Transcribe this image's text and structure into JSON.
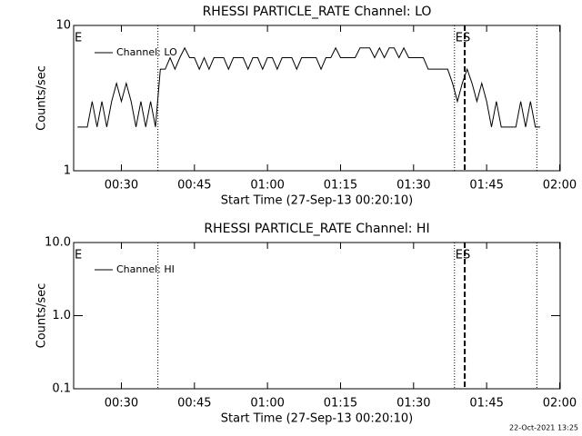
{
  "chart_data": [
    {
      "type": "line",
      "title": "RHESSI PARTICLE_RATE Channel: LO",
      "x_label": "Start Time (27-Sep-13 00:20:10)",
      "y_label": "Counts/sec",
      "log_y": true,
      "legend": "upper left",
      "xlim": [
        20.2,
        120.1
      ],
      "ylim": [
        1,
        10
      ],
      "xticks": [
        {
          "value": 30,
          "label": "00:30"
        },
        {
          "value": 45,
          "label": "00:45"
        },
        {
          "value": 60,
          "label": "01:00"
        },
        {
          "value": 75,
          "label": "01:15"
        },
        {
          "value": 90,
          "label": "01:30"
        },
        {
          "value": 105,
          "label": "01:45"
        },
        {
          "value": 120,
          "label": "02:00"
        }
      ],
      "yticks": [
        1,
        10
      ],
      "vlines": [
        {
          "x": 37.5,
          "style": "dotted"
        },
        {
          "x": 98.4,
          "style": "dotted"
        },
        {
          "x": 100.5,
          "style": "dashed"
        },
        {
          "x": 115.3,
          "style": "dotted"
        }
      ],
      "annotations": [
        {
          "text": "E",
          "x": 20.2
        },
        {
          "text": "ES",
          "x": 98.4
        }
      ],
      "series": [
        {
          "name": "Channel: LO",
          "color": "#000000",
          "x": [
            21,
            22,
            23,
            24,
            25,
            26,
            27,
            28,
            29,
            30,
            31,
            32,
            33,
            34,
            35,
            36,
            37,
            38,
            39,
            40,
            41,
            42,
            43,
            44,
            45,
            46,
            47,
            48,
            49,
            50,
            51,
            52,
            53,
            54,
            55,
            56,
            57,
            58,
            59,
            60,
            61,
            62,
            63,
            64,
            65,
            66,
            67,
            68,
            69,
            70,
            71,
            72,
            73,
            74,
            75,
            76,
            77,
            78,
            79,
            80,
            81,
            82,
            83,
            84,
            85,
            86,
            87,
            88,
            89,
            90,
            91,
            92,
            93,
            94,
            95,
            96,
            97,
            98,
            99,
            100,
            101,
            102,
            103,
            104,
            105,
            106,
            107,
            108,
            109,
            110,
            111,
            112,
            113,
            114,
            115,
            116
          ],
          "values": [
            2,
            2,
            2,
            3,
            2,
            3,
            2,
            3,
            4,
            3,
            4,
            3,
            2,
            3,
            2,
            3,
            2,
            5,
            5,
            6,
            5,
            6,
            7,
            6,
            6,
            5,
            6,
            5,
            6,
            6,
            6,
            5,
            6,
            6,
            6,
            5,
            6,
            6,
            5,
            6,
            6,
            5,
            6,
            6,
            6,
            5,
            6,
            6,
            6,
            6,
            5,
            6,
            6,
            7,
            6,
            6,
            6,
            6,
            7,
            7,
            7,
            6,
            7,
            6,
            7,
            7,
            6,
            7,
            6,
            6,
            6,
            6,
            5,
            5,
            5,
            5,
            5,
            4,
            3,
            4,
            5,
            4,
            3,
            4,
            3,
            2,
            3,
            2,
            2,
            2,
            2,
            3,
            2,
            3,
            2,
            2
          ]
        }
      ]
    },
    {
      "type": "line",
      "title": "RHESSI PARTICLE_RATE Channel: HI",
      "x_label": "Start Time (27-Sep-13 00:20:10)",
      "y_label": "Counts/sec",
      "log_y": true,
      "legend": "upper left",
      "xlim": [
        20.2,
        120.1
      ],
      "ylim": [
        0.1,
        10
      ],
      "xticks": [
        {
          "value": 30,
          "label": "00:30"
        },
        {
          "value": 45,
          "label": "00:45"
        },
        {
          "value": 60,
          "label": "01:00"
        },
        {
          "value": 75,
          "label": "01:15"
        },
        {
          "value": 90,
          "label": "01:30"
        },
        {
          "value": 105,
          "label": "01:45"
        },
        {
          "value": 120,
          "label": "02:00"
        }
      ],
      "yticks": [
        0.1,
        {
          "value": 1,
          "label": "1.0"
        },
        {
          "value": 10,
          "label": "10.0"
        }
      ],
      "vlines": [
        {
          "x": 37.5,
          "style": "dotted"
        },
        {
          "x": 98.4,
          "style": "dotted"
        },
        {
          "x": 100.5,
          "style": "dashed"
        },
        {
          "x": 115.3,
          "style": "dotted"
        }
      ],
      "annotations": [
        {
          "text": "E",
          "x": 20.2
        },
        {
          "text": "ES",
          "x": 98.4
        }
      ],
      "series": [
        {
          "name": "Channel: HI",
          "color": "#000000",
          "x": [],
          "values": []
        }
      ]
    }
  ],
  "footer": "22-Oct-2021 13:25"
}
